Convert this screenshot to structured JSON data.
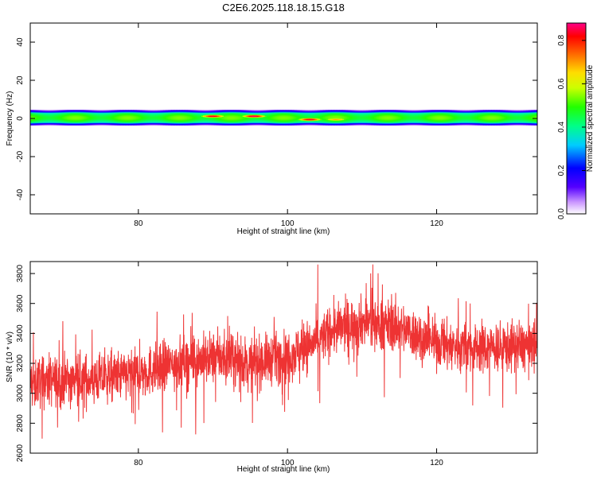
{
  "title": "C2E6.2025.118.18.15.G18",
  "chart_data": [
    {
      "type": "heatmap",
      "xlabel": "Height of straight line (km)",
      "ylabel": "Frequency (Hz)",
      "xlim": [
        65.5,
        133.5
      ],
      "ylim": [
        -50,
        50
      ],
      "xticks": [
        80,
        100,
        120
      ],
      "yticks": [
        -40,
        -20,
        0,
        20,
        40
      ],
      "ytick_labels": [
        "-40",
        "-20",
        "0",
        "20",
        "40"
      ],
      "colorbar": {
        "label": "Normalized spectral amplitude",
        "range": [
          0,
          0.88
        ],
        "ticks": [
          0.0,
          0.2,
          0.4,
          0.6,
          0.8
        ],
        "tick_labels": [
          "0.0",
          "0.2",
          "0.4",
          "0.6",
          "0.8"
        ]
      },
      "band_center_hz": 0.5,
      "band_halfwidth_hz": 4,
      "hotspots": [
        {
          "x_km": 90,
          "freq_hz": 1.3,
          "amplitude": 0.85
        },
        {
          "x_km": 95.5,
          "freq_hz": 1.3,
          "amplitude": 0.88
        },
        {
          "x_km": 103,
          "freq_hz": -0.4,
          "amplitude": 0.85
        },
        {
          "x_km": 106.5,
          "freq_hz": -0.4,
          "amplitude": 0.7
        }
      ],
      "grid": false
    },
    {
      "type": "line",
      "xlabel": "Height of straight line (km)",
      "ylabel": "SNR (10 * v/v)",
      "xlim": [
        65.5,
        133.5
      ],
      "ylim": [
        2600,
        3880
      ],
      "xticks": [
        80,
        100,
        120
      ],
      "yticks": [
        2600,
        2800,
        3000,
        3200,
        3400,
        3600,
        3800
      ],
      "series": [
        {
          "color": "#ee3333",
          "trend_x": [
            65.5,
            70,
            75,
            80,
            85,
            90,
            95,
            100,
            103,
            106,
            110,
            115,
            120,
            125,
            130,
            133.5
          ],
          "trend_mean": [
            3080,
            3080,
            3100,
            3130,
            3200,
            3240,
            3200,
            3250,
            3320,
            3420,
            3480,
            3440,
            3330,
            3300,
            3310,
            3320
          ],
          "noise_amplitude": 110
        }
      ],
      "grid": false
    }
  ]
}
